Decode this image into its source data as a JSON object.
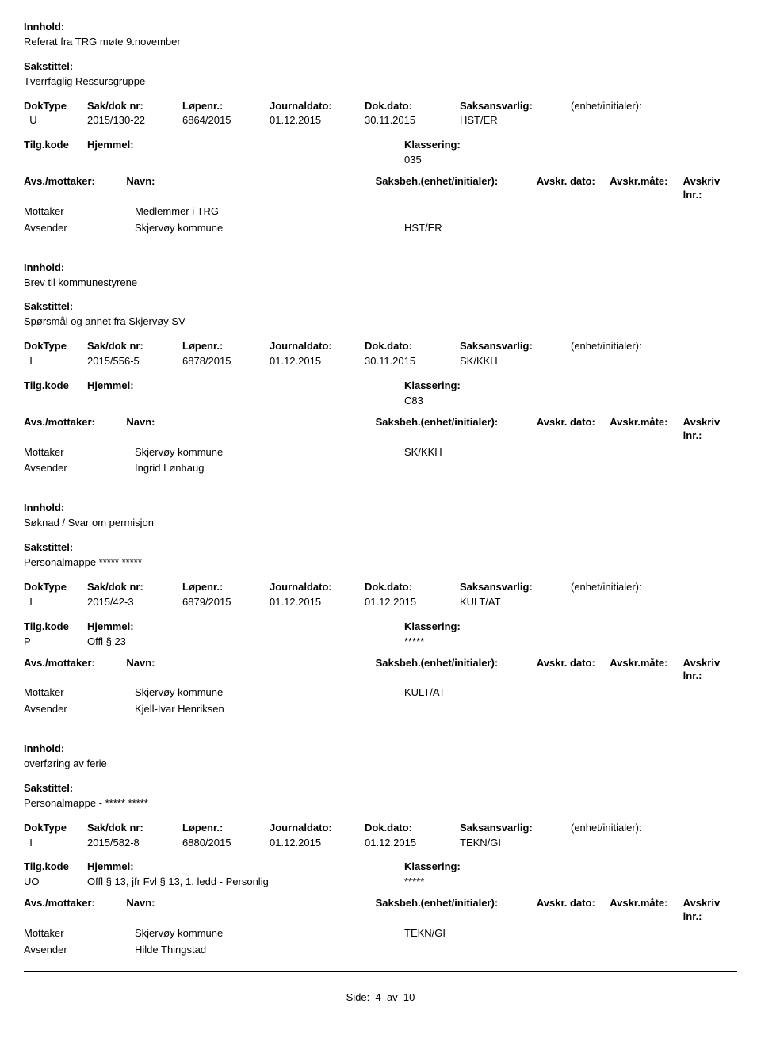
{
  "labels": {
    "innhold": "Innhold:",
    "sakstittel": "Sakstittel:",
    "doktype": "DokType",
    "sakdok": "Sak/dok nr:",
    "lopenr": "Løpenr.:",
    "journaldato": "Journaldato:",
    "dokdato": "Dok.dato:",
    "saksansvarlig": "Saksansvarlig:",
    "enhet": "(enhet/initialer):",
    "tilgkode": "Tilg.kode",
    "hjemmel": "Hjemmel:",
    "klassering": "Klassering:",
    "avs_mottaker": "Avs./mottaker:",
    "navn": "Navn:",
    "saksbeh": "Saksbeh.(enhet/initialer):",
    "avskr_dato": "Avskr. dato:",
    "avskr_mate": "Avskr.måte:",
    "avskriv_lnr": "Avskriv lnr.:",
    "mottaker": "Mottaker",
    "avsender": "Avsender"
  },
  "entries": [
    {
      "innhold": "Referat fra TRG møte 9.november",
      "sakstittel": "Tverrfaglig Ressursgruppe",
      "doktype": "U",
      "sakdok": "2015/130-22",
      "lopenr": "6864/2015",
      "journaldato": "01.12.2015",
      "dokdato": "30.11.2015",
      "saksansvarlig": "HST/ER",
      "tilgkode": "",
      "hjemmel": "",
      "klassering": "035",
      "mottaker_name": "Medlemmer i TRG",
      "mottaker_saksb": "",
      "avsender_name": "Skjervøy kommune",
      "avsender_saksb": "HST/ER"
    },
    {
      "innhold": "Brev til kommunestyrene",
      "sakstittel": "Spørsmål og annet fra Skjervøy SV",
      "doktype": "I",
      "sakdok": "2015/556-5",
      "lopenr": "6878/2015",
      "journaldato": "01.12.2015",
      "dokdato": "30.11.2015",
      "saksansvarlig": "SK/KKH",
      "tilgkode": "",
      "hjemmel": "",
      "klassering": "C83",
      "mottaker_name": "Skjervøy kommune",
      "mottaker_saksb": "SK/KKH",
      "avsender_name": "Ingrid Lønhaug",
      "avsender_saksb": ""
    },
    {
      "innhold": "Søknad / Svar om permisjon",
      "sakstittel": "Personalmappe ***** *****",
      "doktype": "I",
      "sakdok": "2015/42-3",
      "lopenr": "6879/2015",
      "journaldato": "01.12.2015",
      "dokdato": "01.12.2015",
      "saksansvarlig": "KULT/AT",
      "tilgkode": "P",
      "hjemmel": "Offl § 23",
      "klassering": "*****",
      "mottaker_name": "Skjervøy kommune",
      "mottaker_saksb": "KULT/AT",
      "avsender_name": "Kjell-Ivar Henriksen",
      "avsender_saksb": ""
    },
    {
      "innhold": "overføring av ferie",
      "sakstittel": "Personalmappe - ***** *****",
      "doktype": "I",
      "sakdok": "2015/582-8",
      "lopenr": "6880/2015",
      "journaldato": "01.12.2015",
      "dokdato": "01.12.2015",
      "saksansvarlig": "TEKN/GI",
      "tilgkode": "UO",
      "hjemmel": "Offl § 13, jfr Fvl § 13, 1. ledd - Personlig",
      "klassering": "*****",
      "mottaker_name": "Skjervøy kommune",
      "mottaker_saksb": "TEKN/GI",
      "avsender_name": "Hilde Thingstad",
      "avsender_saksb": ""
    }
  ],
  "footer": {
    "side": "Side:",
    "cur": "4",
    "av": "av",
    "total": "10"
  }
}
